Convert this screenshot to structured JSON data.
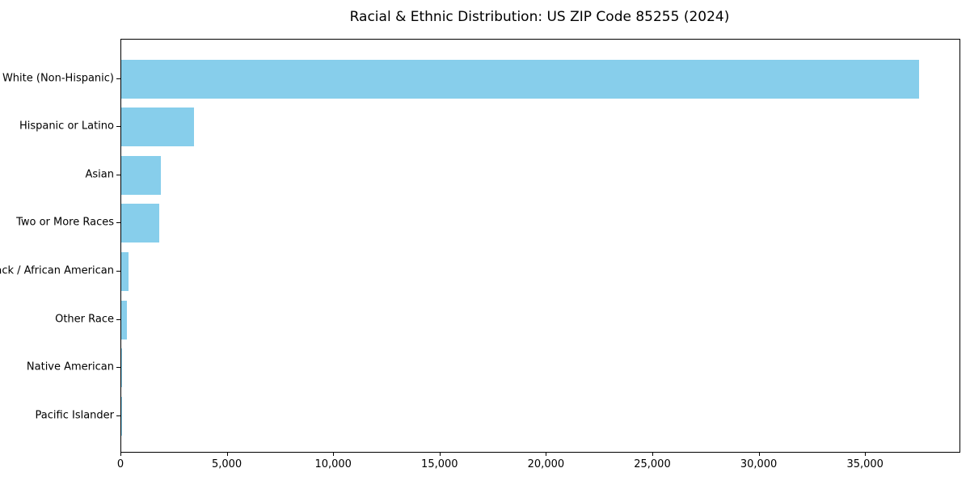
{
  "title": "Racial & Ethnic Distribution: US ZIP Code 85255 (2024)",
  "chart_data": {
    "type": "bar",
    "orientation": "horizontal",
    "title": "Racial & Ethnic Distribution: US ZIP Code 85255 (2024)",
    "categories": [
      "White (Non-Hispanic)",
      "Hispanic or Latino",
      "Asian",
      "Two or More Races",
      "Black / African American",
      "Other Race",
      "Native American",
      "Pacific Islander"
    ],
    "values": [
      37500,
      3430,
      1850,
      1780,
      360,
      265,
      50,
      20
    ],
    "xlabel": "",
    "ylabel": "",
    "xlim": [
      0,
      39400
    ],
    "x_ticks": [
      {
        "value": 0,
        "label": "0"
      },
      {
        "value": 5000,
        "label": "5,000"
      },
      {
        "value": 10000,
        "label": "10,000"
      },
      {
        "value": 15000,
        "label": "15,000"
      },
      {
        "value": 20000,
        "label": "20,000"
      },
      {
        "value": 25000,
        "label": "25,000"
      },
      {
        "value": 30000,
        "label": "30,000"
      },
      {
        "value": 35000,
        "label": "35,000"
      }
    ],
    "bar_color": "#87CEEB",
    "frame_color": "#000000",
    "grid": false,
    "legend": "none"
  }
}
